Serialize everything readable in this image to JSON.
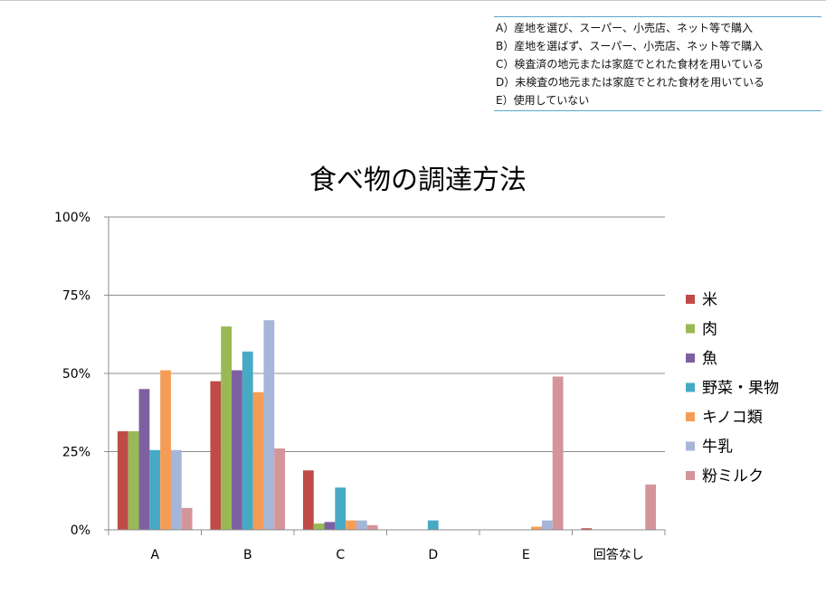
{
  "key": {
    "items": [
      "A）産地を選び、スーパー、小売店、ネット等で購入",
      "B）産地を選ばず、スーパー、小売店、ネット等で購入",
      "C）検査済の地元または家庭でとれた食材を用いている",
      "D）未検査の地元または家庭でとれた食材を用いている",
      "E）使用していない"
    ]
  },
  "chart_data": {
    "type": "bar",
    "title": "食べ物の調達方法",
    "categories": [
      "A",
      "B",
      "C",
      "D",
      "E",
      "回答なし"
    ],
    "yticks": [
      "0%",
      "25%",
      "50%",
      "75%",
      "100%"
    ],
    "ylim": [
      0,
      100
    ],
    "grid": true,
    "legend_position": "right",
    "series": [
      {
        "name": "米",
        "color": "#be4b48",
        "values": [
          31.5,
          47.5,
          19,
          0,
          0,
          0.5
        ]
      },
      {
        "name": "肉",
        "color": "#98b954",
        "values": [
          31.5,
          65,
          2,
          0,
          0,
          0
        ]
      },
      {
        "name": "魚",
        "color": "#7d60a0",
        "values": [
          45,
          51,
          2.5,
          0,
          0,
          0
        ]
      },
      {
        "name": "野菜・果物",
        "color": "#46aac5",
        "values": [
          25.5,
          57,
          13.5,
          3,
          0,
          0
        ]
      },
      {
        "name": "キノコ類",
        "color": "#f59d56",
        "values": [
          51,
          44,
          3,
          0,
          1,
          0
        ]
      },
      {
        "name": "牛乳",
        "color": "#a5b6d8",
        "values": [
          25.5,
          67,
          3,
          0,
          3,
          0
        ]
      },
      {
        "name": "粉ミルク",
        "color": "#d4959a",
        "values": [
          7,
          26,
          1.5,
          0,
          49,
          14.5
        ]
      }
    ]
  }
}
